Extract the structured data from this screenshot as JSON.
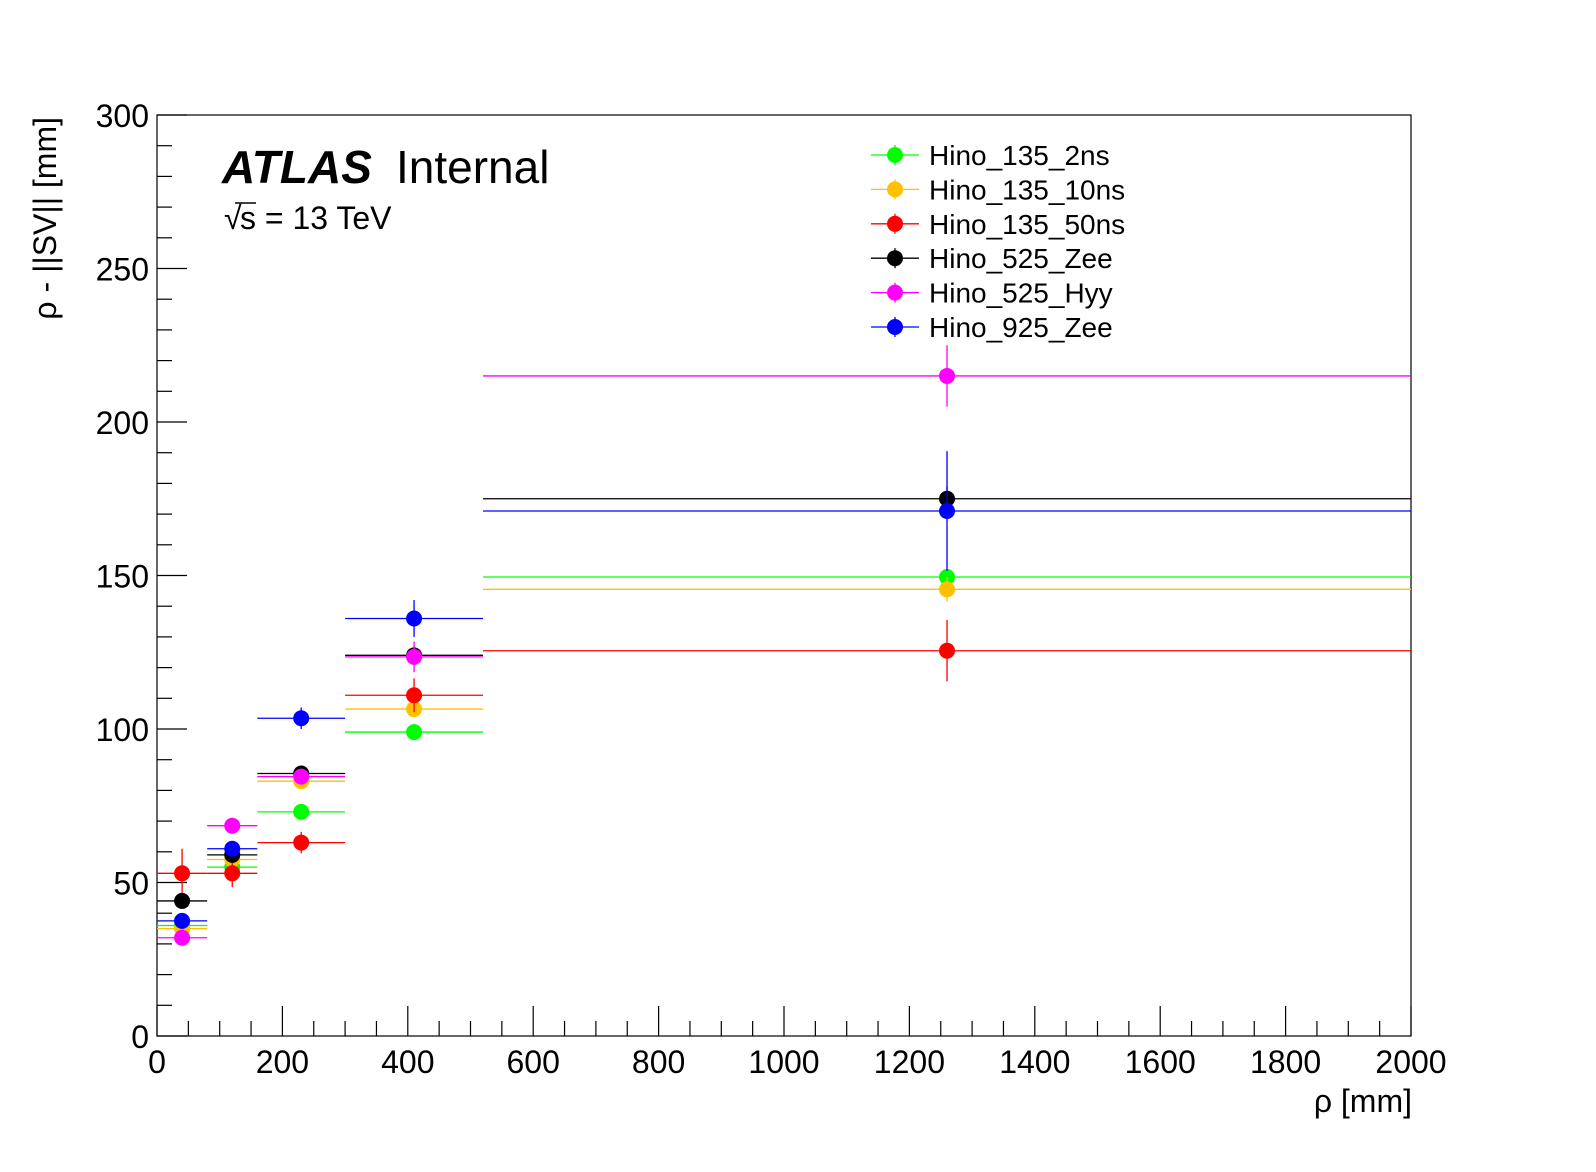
{
  "chart_data": {
    "type": "scatter",
    "xlabel": "ρ [mm]",
    "ylabel": "ρ - ||SV|| [mm]",
    "xlim": [
      0,
      2000
    ],
    "ylim": [
      0,
      300
    ],
    "x_ticks": [
      0,
      200,
      400,
      600,
      800,
      1000,
      1200,
      1400,
      1600,
      1800,
      2000
    ],
    "y_ticks": [
      0,
      50,
      100,
      150,
      200,
      250,
      300
    ],
    "x_tick_labels": [
      "0",
      "200",
      "400",
      "600",
      "800",
      "1000",
      "1200",
      "1400",
      "1600",
      "1800",
      "2000"
    ],
    "y_tick_labels": [
      "0",
      "50",
      "100",
      "150",
      "200",
      "250",
      "300"
    ],
    "grid": false,
    "legend_position": "top-right",
    "annotation": {
      "atlas": "ATLAS",
      "internal": "Internal",
      "sqrt": "√",
      "energy": "s = 13 TeV"
    },
    "bins": [
      {
        "x": 40,
        "xlo": 0,
        "xhi": 80
      },
      {
        "x": 120,
        "xlo": 80,
        "xhi": 160
      },
      {
        "x": 230,
        "xlo": 160,
        "xhi": 300
      },
      {
        "x": 410,
        "xlo": 300,
        "xhi": 520
      },
      {
        "x": 1260,
        "xlo": 520,
        "xhi": 2000
      }
    ],
    "series": [
      {
        "name": "Hino_135_2ns",
        "color": "#00ff00",
        "values": [
          36,
          55,
          73,
          99,
          149.5
        ],
        "errors": [
          1.5,
          1.5,
          1.5,
          1.5,
          2
        ]
      },
      {
        "name": "Hino_135_10ns",
        "color": "#ffc000",
        "values": [
          35,
          57.5,
          83,
          106.5,
          145.5
        ],
        "errors": [
          1.5,
          1.5,
          1.5,
          1.5,
          4
        ]
      },
      {
        "name": "Hino_135_50ns",
        "color": "#ff0000",
        "values": [
          53,
          53,
          63,
          111,
          125.5
        ],
        "errors": [
          8,
          4.5,
          3.5,
          5.5,
          10
        ]
      },
      {
        "name": "Hino_525_Zee",
        "color": "#000000",
        "values": [
          44,
          59,
          85.5,
          124,
          175
        ],
        "errors": [
          2,
          1.5,
          1.5,
          3,
          4
        ]
      },
      {
        "name": "Hino_525_Hyy",
        "color": "#ff00ff",
        "values": [
          32,
          68.5,
          84.5,
          123.5,
          215
        ],
        "errors": [
          1,
          1,
          1.5,
          5,
          10
        ]
      },
      {
        "name": "Hino_925_Zee",
        "color": "#0000ff",
        "values": [
          37.5,
          61,
          103.5,
          136,
          171
        ],
        "errors": [
          1.5,
          1.5,
          3.5,
          6,
          19.5
        ]
      }
    ]
  }
}
